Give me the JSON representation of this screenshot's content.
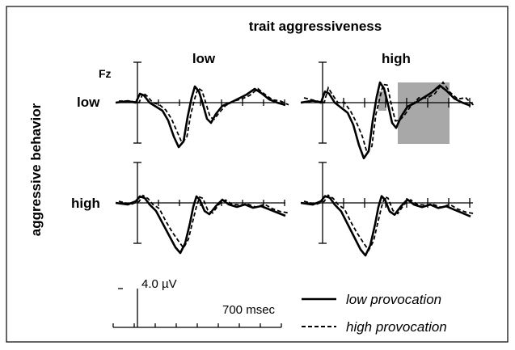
{
  "header": {
    "title": "trait aggressiveness",
    "columns": [
      "low",
      "high"
    ]
  },
  "electrode": "Fz",
  "rows": {
    "title": "aggressive behavior",
    "labels": [
      "low",
      "high"
    ]
  },
  "scale": {
    "amplitude": "4.0  µV",
    "time": "700 msec"
  },
  "legend": [
    "low provocation",
    "high provocation"
  ]
}
